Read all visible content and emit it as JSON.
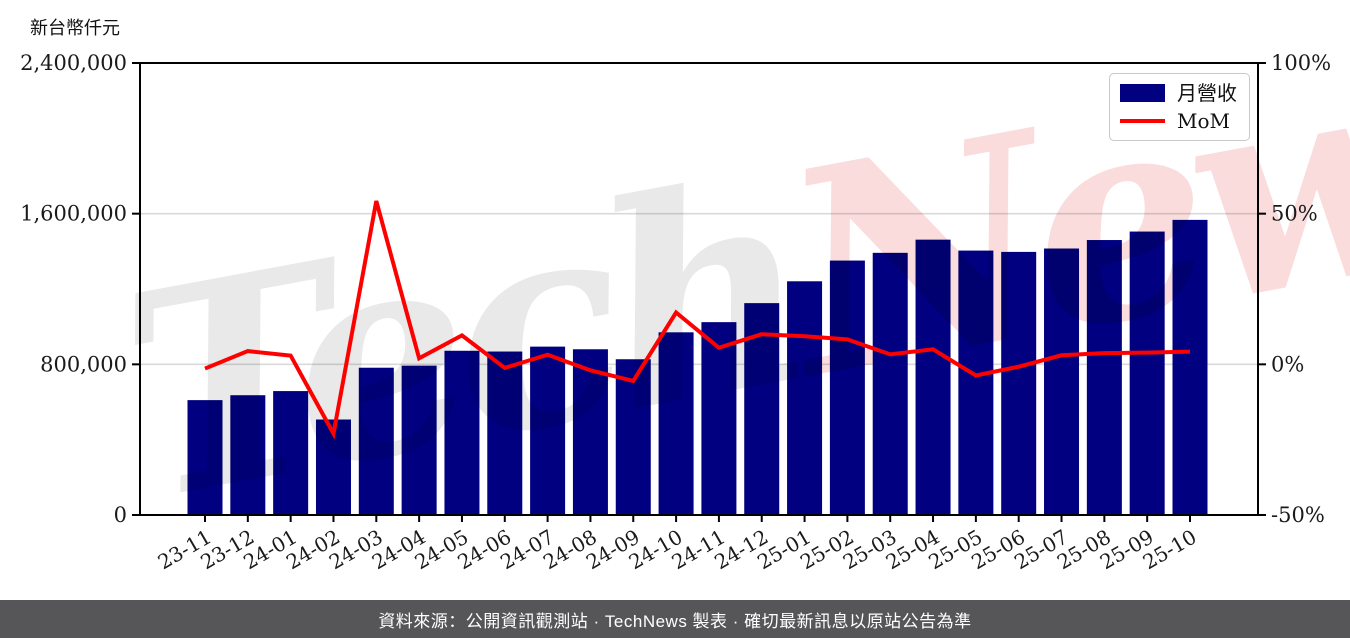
{
  "unit_label": "新台幣仟元",
  "legend": {
    "items": [
      {
        "label": "月營收",
        "swatch": "bar",
        "color": "#000080"
      },
      {
        "label": "MoM",
        "swatch": "line",
        "color": "#ff0000"
      }
    ]
  },
  "watermark": {
    "part1": "Tech",
    "part1_color": "#e9e9e9",
    "part2": "News",
    "part2_color": "#fadcdc"
  },
  "footer": {
    "text": "資料來源：公開資訊觀測站 · TechNews 製表 · 確切最新訊息以原站公告為準",
    "background": "#565658",
    "text_color": "#ffffff"
  },
  "chart_data": {
    "type": "bar",
    "title": "",
    "xlabel": "",
    "ylabel_left": "新台幣仟元",
    "ylabel_right": "%",
    "legend_position": "top-right",
    "grid": {
      "horizontal_left_values": [
        800000,
        1600000
      ],
      "color": "#d9d9d9"
    },
    "categories": [
      "23-11",
      "23-12",
      "24-01",
      "24-02",
      "24-03",
      "24-04",
      "24-05",
      "24-06",
      "24-07",
      "24-08",
      "24-09",
      "24-10",
      "24-11",
      "24-12",
      "25-01",
      "25-02",
      "25-03",
      "25-04",
      "25-05",
      "25-06",
      "25-07",
      "25-08",
      "25-09",
      "25-10"
    ],
    "series": [
      {
        "name": "月營收",
        "type": "bar",
        "axis": "left",
        "color": "#000080",
        "values": [
          610000,
          636000,
          658000,
          507000,
          782000,
          793000,
          872000,
          868000,
          894000,
          880000,
          827000,
          970000,
          1024000,
          1125000,
          1241000,
          1351000,
          1392000,
          1462000,
          1404000,
          1397000,
          1415000,
          1460000,
          1505000,
          1567000
        ]
      },
      {
        "name": "MoM",
        "type": "line",
        "axis": "right",
        "color": "#ff0000",
        "unit": "%",
        "values": [
          -1.4,
          4.4,
          2.9,
          -23.0,
          54.2,
          2.0,
          9.6,
          -1.2,
          3.2,
          -2.0,
          -5.5,
          17.2,
          5.5,
          10.0,
          9.3,
          8.3,
          3.3,
          5.0,
          -3.7,
          -0.8,
          3.0,
          3.7,
          3.9,
          4.2
        ]
      }
    ],
    "left_axis": {
      "min": 0,
      "max": 2400000,
      "ticks": [
        {
          "value": 0,
          "label": "0"
        },
        {
          "value": 800000,
          "label": "800,000"
        },
        {
          "value": 1600000,
          "label": "1,600,000"
        },
        {
          "value": 2400000,
          "label": "2,400,000"
        }
      ]
    },
    "right_axis": {
      "min": -50,
      "max": 100,
      "ticks": [
        {
          "value": -50,
          "label": "-50%"
        },
        {
          "value": 0,
          "label": "0%"
        },
        {
          "value": 50,
          "label": "50%"
        },
        {
          "value": 100,
          "label": "100%"
        }
      ]
    }
  }
}
